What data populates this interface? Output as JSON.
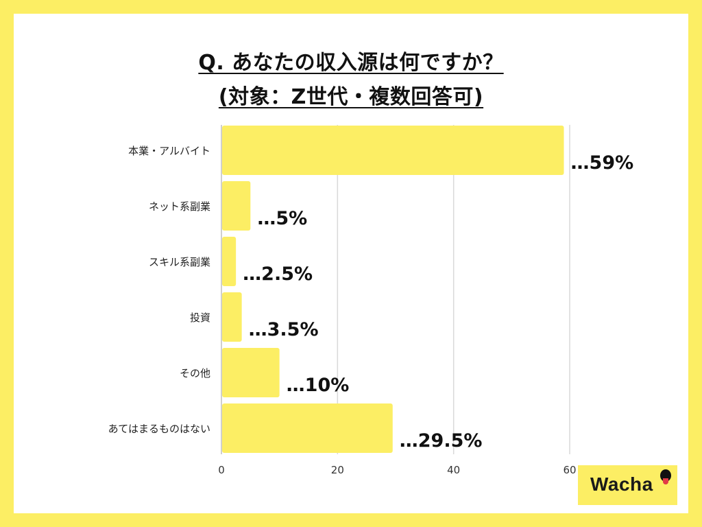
{
  "title_line1": "Q. あなたの収入源は何ですか？",
  "title_line2": "(対象：Z世代・複数回答可)",
  "logo": {
    "text": "Wacha"
  },
  "colors": {
    "bar": "#FCEE64",
    "background": "#FFFFFF",
    "frame": "#FCEE64",
    "grid": "#D9D9D9",
    "text": "#111111"
  },
  "chart_data": {
    "type": "bar",
    "orientation": "horizontal",
    "categories": [
      "本業・アルバイト",
      "ネット系副業",
      "スキル系副業",
      "投資",
      "その他",
      "あてはまるものはない"
    ],
    "values": [
      59,
      5,
      2.5,
      3.5,
      10,
      29.5
    ],
    "data_labels": [
      "…59%",
      "…5%",
      "…2.5%",
      "…3.5%",
      "…10%",
      "…29.5%"
    ],
    "xlim": [
      0,
      60
    ],
    "xticks": [
      "0",
      "20",
      "40",
      "60"
    ],
    "grid": true
  }
}
